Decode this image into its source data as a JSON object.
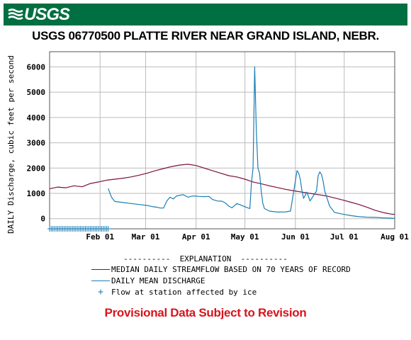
{
  "header": {
    "logo_text": "USGS",
    "colors": {
      "banner": "#006f41",
      "logo": "#ffffff"
    }
  },
  "provisional_note": "Provisional Data Subject to Revision",
  "colors": {
    "median": "#7a1040",
    "discharge": "#1a7fb5",
    "ice": "#1a7fb5",
    "grid": "#bbbbbb",
    "provisional": "#d8141a"
  },
  "chart_data": {
    "type": "line",
    "title": "USGS 06770500 PLATTE RIVER NEAR GRAND ISLAND, NEBR.",
    "ylabel": "DAILY Discharge, cubic feet per second",
    "xlabel": "",
    "ylim": [
      -400,
      6600
    ],
    "yticks": [
      0,
      1000,
      2000,
      3000,
      4000,
      5000,
      6000
    ],
    "xlim": [
      0,
      212
    ],
    "xticks": [
      {
        "day": 31,
        "label": "Feb 01"
      },
      {
        "day": 59,
        "label": "Mar 01"
      },
      {
        "day": 90,
        "label": "Apr 01"
      },
      {
        "day": 120,
        "label": "May 01"
      },
      {
        "day": 151,
        "label": "Jun 01"
      },
      {
        "day": 181,
        "label": "Jul 01"
      },
      {
        "day": 212,
        "label": "Aug 01"
      }
    ],
    "grid": true,
    "explanation_title": "----------  EXPLANATION  ----------",
    "series": [
      {
        "name": "MEDIAN DAILY STREAMFLOW BASED ON 70 YEARS OF RECORD",
        "points": [
          [
            0,
            1180
          ],
          [
            5,
            1250
          ],
          [
            10,
            1220
          ],
          [
            15,
            1300
          ],
          [
            20,
            1260
          ],
          [
            25,
            1390
          ],
          [
            30,
            1450
          ],
          [
            35,
            1520
          ],
          [
            40,
            1560
          ],
          [
            45,
            1600
          ],
          [
            50,
            1650
          ],
          [
            55,
            1720
          ],
          [
            60,
            1800
          ],
          [
            65,
            1900
          ],
          [
            70,
            1980
          ],
          [
            75,
            2060
          ],
          [
            80,
            2120
          ],
          [
            85,
            2150
          ],
          [
            90,
            2100
          ],
          [
            95,
            2000
          ],
          [
            100,
            1900
          ],
          [
            105,
            1800
          ],
          [
            110,
            1700
          ],
          [
            115,
            1650
          ],
          [
            120,
            1560
          ],
          [
            125,
            1450
          ],
          [
            130,
            1380
          ],
          [
            135,
            1300
          ],
          [
            140,
            1230
          ],
          [
            145,
            1160
          ],
          [
            150,
            1100
          ],
          [
            155,
            1050
          ],
          [
            160,
            1000
          ],
          [
            165,
            950
          ],
          [
            170,
            900
          ],
          [
            175,
            820
          ],
          [
            180,
            740
          ],
          [
            185,
            650
          ],
          [
            190,
            560
          ],
          [
            195,
            450
          ],
          [
            200,
            330
          ],
          [
            205,
            240
          ],
          [
            210,
            180
          ],
          [
            212,
            170
          ]
        ]
      },
      {
        "name": "DAILY MEAN DISCHARGE",
        "points": [
          [
            36,
            1200
          ],
          [
            38,
            850
          ],
          [
            40,
            680
          ],
          [
            45,
            640
          ],
          [
            50,
            600
          ],
          [
            55,
            560
          ],
          [
            60,
            520
          ],
          [
            63,
            480
          ],
          [
            66,
            450
          ],
          [
            68,
            420
          ],
          [
            70,
            420
          ],
          [
            72,
            700
          ],
          [
            74,
            850
          ],
          [
            76,
            780
          ],
          [
            78,
            900
          ],
          [
            82,
            950
          ],
          [
            85,
            850
          ],
          [
            88,
            900
          ],
          [
            92,
            880
          ],
          [
            95,
            870
          ],
          [
            98,
            880
          ],
          [
            100,
            760
          ],
          [
            103,
            700
          ],
          [
            106,
            690
          ],
          [
            108,
            620
          ],
          [
            110,
            500
          ],
          [
            112,
            430
          ],
          [
            115,
            600
          ],
          [
            118,
            520
          ],
          [
            120,
            470
          ],
          [
            122,
            420
          ],
          [
            123,
            400
          ],
          [
            124,
            1400
          ],
          [
            125,
            2000
          ],
          [
            126,
            6000
          ],
          [
            127,
            3500
          ],
          [
            128,
            2000
          ],
          [
            129,
            1800
          ],
          [
            130,
            1100
          ],
          [
            131,
            600
          ],
          [
            132,
            400
          ],
          [
            135,
            300
          ],
          [
            140,
            260
          ],
          [
            145,
            270
          ],
          [
            148,
            300
          ],
          [
            151,
            1500
          ],
          [
            152,
            1900
          ],
          [
            153,
            1800
          ],
          [
            154,
            1550
          ],
          [
            155,
            1100
          ],
          [
            156,
            800
          ],
          [
            158,
            1050
          ],
          [
            160,
            700
          ],
          [
            162,
            900
          ],
          [
            164,
            1100
          ],
          [
            165,
            1700
          ],
          [
            166,
            1850
          ],
          [
            167,
            1750
          ],
          [
            168,
            1500
          ],
          [
            169,
            1100
          ],
          [
            170,
            900
          ],
          [
            172,
            500
          ],
          [
            175,
            250
          ],
          [
            180,
            180
          ],
          [
            185,
            120
          ],
          [
            190,
            80
          ],
          [
            195,
            60
          ],
          [
            200,
            50
          ],
          [
            205,
            30
          ],
          [
            210,
            20
          ],
          [
            212,
            10
          ]
        ]
      }
    ],
    "ice": {
      "name": "Flow at station affected by ice",
      "value": -400,
      "day_start": 0,
      "day_end": 36
    }
  }
}
